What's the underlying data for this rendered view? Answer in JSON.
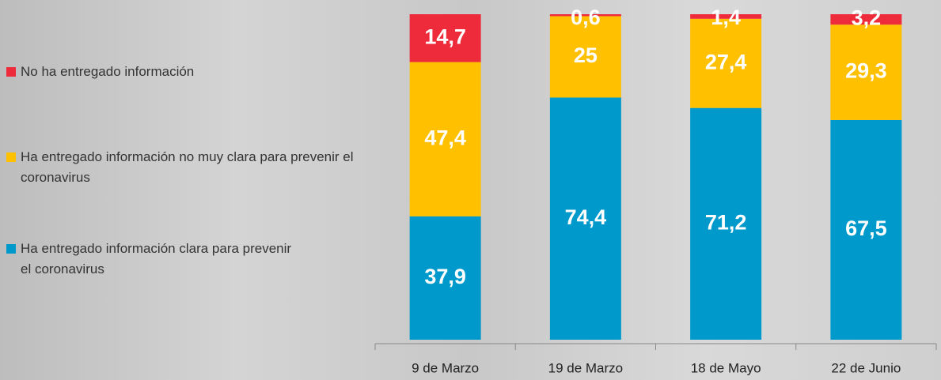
{
  "chart_data": {
    "type": "stacked-bar",
    "categories": [
      "9 de Marzo",
      "19 de Marzo",
      "18 de Mayo",
      "22 de Junio"
    ],
    "series": [
      {
        "name": "Ha entregado información clara para prevenir el coronavirus",
        "color": "#0099cc",
        "values": [
          37.9,
          74.4,
          71.2,
          67.5
        ],
        "value_labels": [
          "37,9",
          "74,4",
          "71,2",
          "67,5"
        ]
      },
      {
        "name": "Ha entregado información no muy clara para prevenir el coronavirus",
        "color": "#ffc000",
        "values": [
          47.4,
          25,
          27.4,
          29.3
        ],
        "value_labels": [
          "47,4",
          "25",
          "27,4",
          "29,3"
        ]
      },
      {
        "name": "No ha entregado información",
        "color": "#ee2b3b",
        "values": [
          14.7,
          0.6,
          1.4,
          3.2
        ],
        "value_labels": [
          "14,7",
          "0,6",
          "1,4",
          "3,2"
        ]
      }
    ]
  }
}
